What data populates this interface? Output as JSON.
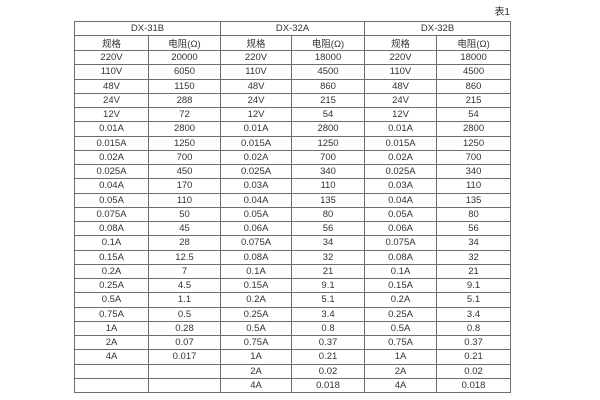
{
  "page": {
    "caption": "表1"
  },
  "table": {
    "groups": [
      {
        "name": "DX-31B"
      },
      {
        "name": "DX-32A"
      },
      {
        "name": "DX-32B"
      }
    ],
    "subheaders": {
      "spec": "规格",
      "resistance": "电阻(Ω)"
    },
    "rows": [
      [
        "220V",
        "20000",
        "220V",
        "18000",
        "220V",
        "18000"
      ],
      [
        "110V",
        "6050",
        "110V",
        "4500",
        "110V",
        "4500"
      ],
      [
        "48V",
        "1150",
        "48V",
        "860",
        "48V",
        "860"
      ],
      [
        "24V",
        "288",
        "24V",
        "215",
        "24V",
        "215"
      ],
      [
        "12V",
        "72",
        "12V",
        "54",
        "12V",
        "54"
      ],
      [
        "0.01A",
        "2800",
        "0.01A",
        "2800",
        "0.01A",
        "2800"
      ],
      [
        "0.015A",
        "1250",
        "0.015A",
        "1250",
        "0.015A",
        "1250"
      ],
      [
        "0.02A",
        "700",
        "0.02A",
        "700",
        "0.02A",
        "700"
      ],
      [
        "0.025A",
        "450",
        "0.025A",
        "340",
        "0.025A",
        "340"
      ],
      [
        "0.04A",
        "170",
        "0.03A",
        "110",
        "0.03A",
        "110"
      ],
      [
        "0.05A",
        "110",
        "0.04A",
        "135",
        "0.04A",
        "135"
      ],
      [
        "0.075A",
        "50",
        "0.05A",
        "80",
        "0.05A",
        "80"
      ],
      [
        "0.08A",
        "45",
        "0.06A",
        "56",
        "0.06A",
        "56"
      ],
      [
        "0.1A",
        "28",
        "0.075A",
        "34",
        "0.075A",
        "34"
      ],
      [
        "0.15A",
        "12.5",
        "0.08A",
        "32",
        "0.08A",
        "32"
      ],
      [
        "0.2A",
        "7",
        "0.1A",
        "21",
        "0.1A",
        "21"
      ],
      [
        "0.25A",
        "4.5",
        "0.15A",
        "9.1",
        "0.15A",
        "9.1"
      ],
      [
        "0.5A",
        "1.1",
        "0.2A",
        "5.1",
        "0.2A",
        "5.1"
      ],
      [
        "0.75A",
        "0.5",
        "0.25A",
        "3.4",
        "0.25A",
        "3.4"
      ],
      [
        "1A",
        "0.28",
        "0.5A",
        "0.8",
        "0.5A",
        "0.8"
      ],
      [
        "2A",
        "0.07",
        "0.75A",
        "0.37",
        "0.75A",
        "0.37"
      ],
      [
        "4A",
        "0.017",
        "1A",
        "0.21",
        "1A",
        "0.21"
      ],
      [
        "",
        "",
        "2A",
        "0.02",
        "2A",
        "0.02"
      ],
      [
        "",
        "",
        "4A",
        "0.018",
        "4A",
        "0.018"
      ]
    ]
  },
  "chart_data": {
    "type": "table",
    "title": "表1",
    "column_groups": [
      "DX-31B",
      "DX-32A",
      "DX-32B"
    ],
    "columns": [
      "规格",
      "电阻(Ω)",
      "规格",
      "电阻(Ω)",
      "规格",
      "电阻(Ω)"
    ]
  }
}
